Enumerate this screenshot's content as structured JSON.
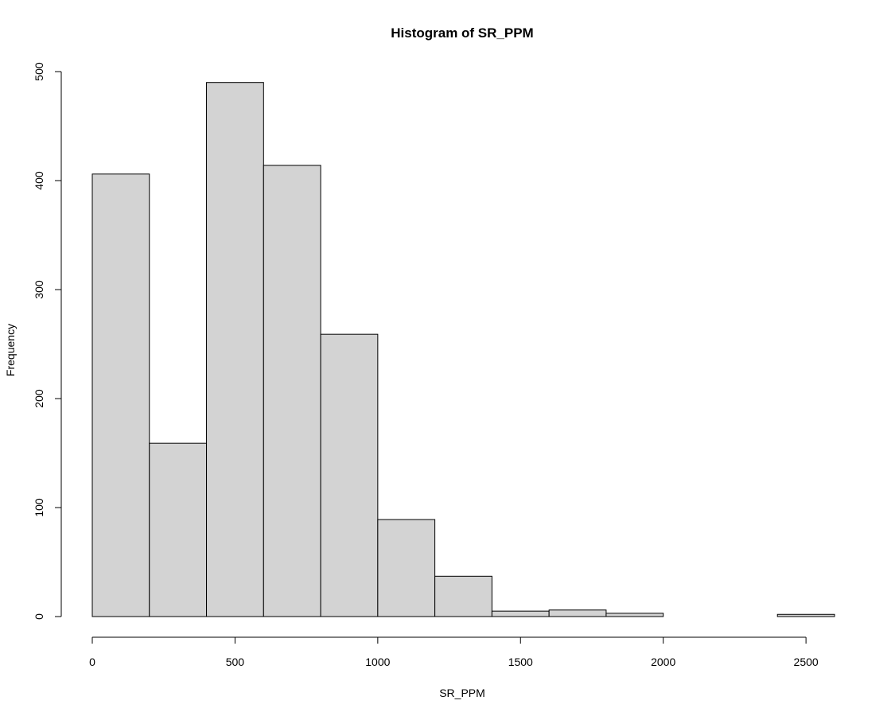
{
  "chart_data": {
    "type": "bar",
    "title": "Histogram of SR_PPM",
    "xlabel": "SR_PPM",
    "ylabel": "Frequency",
    "bins": [
      {
        "start": 0,
        "end": 200,
        "count": 406
      },
      {
        "start": 200,
        "end": 400,
        "count": 159
      },
      {
        "start": 400,
        "end": 600,
        "count": 490
      },
      {
        "start": 600,
        "end": 800,
        "count": 414
      },
      {
        "start": 800,
        "end": 1000,
        "count": 259
      },
      {
        "start": 1000,
        "end": 1200,
        "count": 89
      },
      {
        "start": 1200,
        "end": 1400,
        "count": 37
      },
      {
        "start": 1400,
        "end": 1600,
        "count": 5
      },
      {
        "start": 1600,
        "end": 1800,
        "count": 6
      },
      {
        "start": 1800,
        "end": 2000,
        "count": 3
      },
      {
        "start": 2000,
        "end": 2200,
        "count": 0
      },
      {
        "start": 2200,
        "end": 2400,
        "count": 0
      },
      {
        "start": 2400,
        "end": 2600,
        "count": 2
      }
    ],
    "xlim": [
      0,
      2600
    ],
    "ylim": [
      0,
      500
    ],
    "xticks": [
      0,
      500,
      1000,
      1500,
      2000,
      2500
    ],
    "yticks": [
      0,
      100,
      200,
      300,
      400,
      500
    ],
    "grid": false,
    "bar_color": "#d3d3d3",
    "edge_color": "#000000"
  }
}
